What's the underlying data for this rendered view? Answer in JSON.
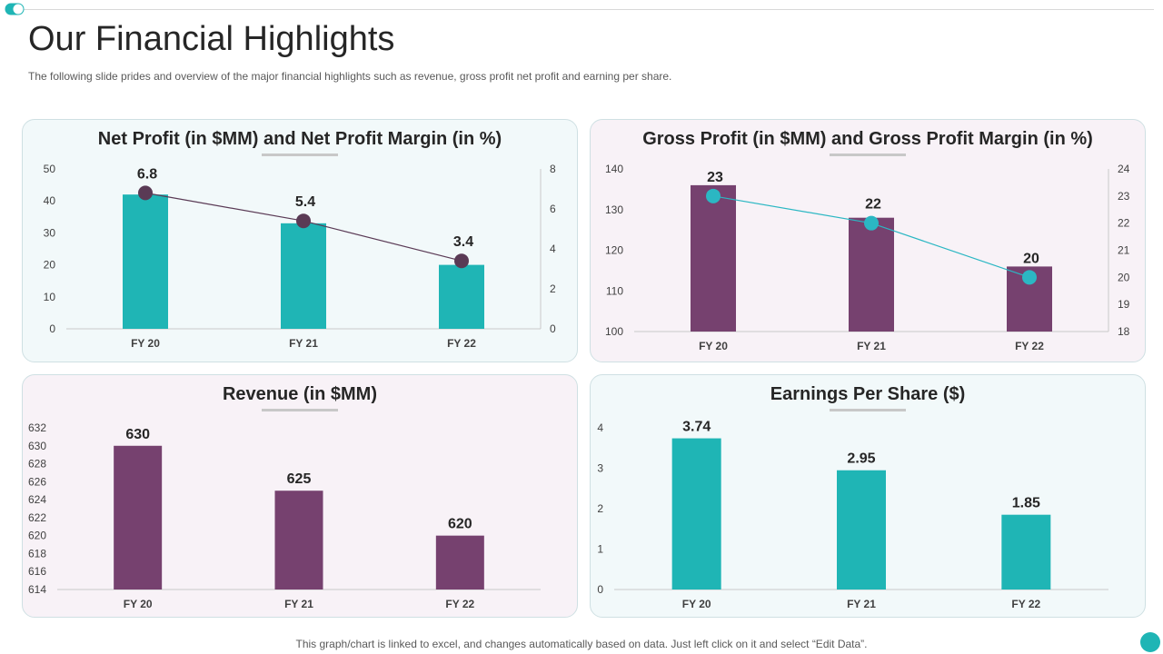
{
  "page": {
    "title": "Our Financial Highlights",
    "subtitle": "The following slide prides and overview of the major financial highlights such as revenue, gross profit net profit and earning per share.",
    "footer": "This graph/chart is linked to excel,  and changes automatically based on data. Just left click on it and select “Edit Data”."
  },
  "colors": {
    "teal": "#1fb5b5",
    "purple": "#76416f",
    "line_dark": "#5a3a55",
    "line_teal": "#2bb7c3"
  },
  "chart_data": [
    {
      "type": "bar",
      "title": "Net Profit (in $MM) and Net Profit Margin (in %)",
      "categories": [
        "FY 20",
        "FY 21",
        "FY 22"
      ],
      "series": [
        {
          "values": [
            42,
            33,
            20
          ],
          "axis": "left",
          "kind": "bar",
          "color": "#1fb5b5"
        },
        {
          "values": [
            6.8,
            5.4,
            3.4
          ],
          "axis": "right",
          "kind": "line",
          "color": "#5a3a55"
        }
      ],
      "yticks": [
        "0",
        "10",
        "20",
        "30",
        "40",
        "50"
      ],
      "y2ticks": [
        "0",
        "2",
        "4",
        "6",
        "8"
      ],
      "ylim": [
        0,
        50
      ],
      "y2lim": [
        0,
        8
      ]
    },
    {
      "type": "bar",
      "title": "Gross Profit (in $MM) and Gross Profit Margin (in %)",
      "categories": [
        "FY 20",
        "FY 21",
        "FY 22"
      ],
      "series": [
        {
          "values": [
            136,
            128,
            116
          ],
          "axis": "left",
          "kind": "bar",
          "color": "#76416f"
        },
        {
          "values": [
            23,
            22,
            20
          ],
          "axis": "right",
          "kind": "line",
          "color": "#2bb7c3"
        }
      ],
      "yticks": [
        "100",
        "110",
        "120",
        "130",
        "140"
      ],
      "y2ticks": [
        "18",
        "19",
        "20",
        "21",
        "22",
        "23",
        "24"
      ],
      "ylim": [
        100,
        140
      ],
      "y2lim": [
        18,
        24
      ]
    },
    {
      "type": "bar",
      "title": "Revenue (in $MM)",
      "categories": [
        "FY 20",
        "FY 21",
        "FY 22"
      ],
      "series": [
        {
          "values": [
            630,
            625,
            620
          ],
          "axis": "left",
          "kind": "bar",
          "color": "#76416f"
        }
      ],
      "yticks": [
        "614",
        "616",
        "618",
        "620",
        "622",
        "624",
        "626",
        "628",
        "630",
        "632"
      ],
      "ylim": [
        614,
        632
      ]
    },
    {
      "type": "bar",
      "title": "Earnings Per Share ($)",
      "categories": [
        "FY 20",
        "FY 21",
        "FY 22"
      ],
      "series": [
        {
          "values": [
            3.74,
            2.95,
            1.85
          ],
          "axis": "left",
          "kind": "bar",
          "color": "#1fb5b5"
        }
      ],
      "yticks": [
        "0",
        "1",
        "2",
        "3",
        "4"
      ],
      "ylim": [
        0,
        4
      ]
    }
  ]
}
